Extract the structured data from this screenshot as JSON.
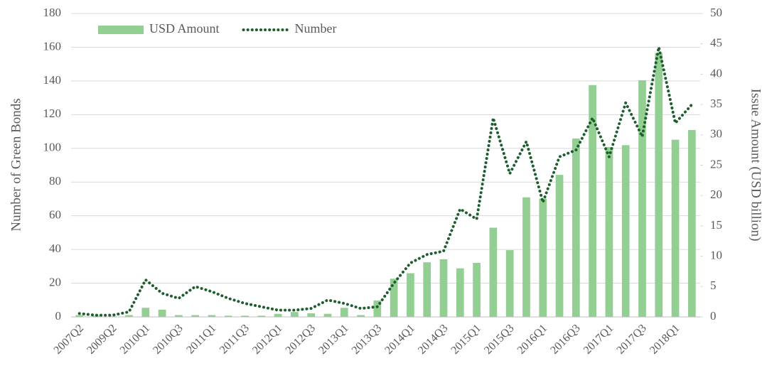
{
  "chart_data": {
    "type": "bar-line",
    "categories": [
      "2007Q2",
      null,
      "2009Q2",
      null,
      "2010Q1",
      null,
      "2010Q3",
      null,
      "2011Q1",
      null,
      "2011Q3",
      null,
      "2012Q1",
      null,
      "2012Q3",
      null,
      "2013Q1",
      null,
      "2013Q3",
      null,
      "2014Q1",
      null,
      "2014Q3",
      null,
      "2015Q1",
      null,
      "2015Q3",
      null,
      "2016Q1",
      null,
      "2016Q3",
      null,
      "2017Q1",
      null,
      "2017Q3",
      null,
      "2018Q1",
      null
    ],
    "series": [
      {
        "name": "USD Amount",
        "color": "#93cf93",
        "axis": "y2",
        "kind": "bar",
        "values": [
          0.3,
          0.2,
          0.1,
          0.3,
          1.5,
          1.2,
          0.3,
          0.3,
          0.3,
          0.2,
          0.2,
          0.2,
          0.5,
          0.8,
          0.6,
          0.5,
          1.5,
          0.3,
          2.7,
          6.3,
          7.2,
          9,
          9.5,
          8,
          8.9,
          14.7,
          11,
          19.7,
          19.5,
          23.4,
          29.4,
          38.2,
          28,
          28.3,
          39,
          43.5,
          29.2,
          30.8
        ]
      },
      {
        "name": "Number",
        "color": "#1e5e2e",
        "axis": "y",
        "kind": "line",
        "values": [
          2,
          1,
          1,
          3,
          22,
          14,
          11,
          18,
          15,
          11,
          8,
          6,
          4,
          4,
          5,
          10,
          8,
          5,
          6,
          20,
          32,
          37,
          39,
          64,
          58,
          118,
          85,
          104,
          68,
          95,
          99,
          118,
          95,
          127,
          107,
          160,
          115,
          126
        ]
      }
    ],
    "ylabel": "Number of Green Bonds",
    "y2label": "Issue Amount (USD billion)",
    "ylim": [
      0,
      180
    ],
    "yticks": [
      0,
      20,
      40,
      60,
      80,
      100,
      120,
      140,
      160,
      180
    ],
    "y2lim": [
      0,
      50
    ],
    "y2ticks": [
      0,
      5,
      10,
      15,
      20,
      25,
      30,
      35,
      40,
      45,
      50
    ],
    "grid": true,
    "legend": "top-left"
  }
}
